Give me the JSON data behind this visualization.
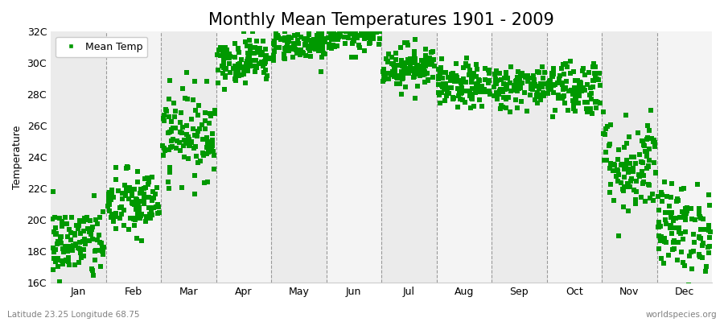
{
  "title": "Monthly Mean Temperatures 1901 - 2009",
  "ylabel": "Temperature",
  "ylim": [
    16,
    32
  ],
  "yticks": [
    16,
    18,
    20,
    22,
    24,
    26,
    28,
    30,
    32
  ],
  "ytick_labels": [
    "16C",
    "18C",
    "20C",
    "22C",
    "24C",
    "26C",
    "28C",
    "30C",
    "32C"
  ],
  "months": [
    "Jan",
    "Feb",
    "Mar",
    "Apr",
    "May",
    "Jun",
    "Jul",
    "Aug",
    "Sep",
    "Oct",
    "Nov",
    "Dec"
  ],
  "month_means": [
    18.5,
    21.0,
    25.5,
    30.2,
    31.2,
    31.8,
    29.8,
    28.5,
    28.5,
    28.5,
    23.5,
    19.5
  ],
  "month_stds": [
    1.2,
    1.1,
    1.4,
    0.7,
    0.5,
    0.5,
    0.7,
    0.7,
    0.7,
    0.9,
    1.6,
    1.4
  ],
  "n_years": 109,
  "marker_color": "#009900",
  "marker": "s",
  "marker_size": 4,
  "bg_color_odd": "#EBEBEB",
  "bg_color_even": "#F4F4F4",
  "legend_label": "Mean Temp",
  "subtitle_left": "Latitude 23.25 Longitude 68.75",
  "subtitle_right": "worldspecies.org",
  "title_fontsize": 15,
  "axis_fontsize": 9,
  "label_fontsize": 9
}
